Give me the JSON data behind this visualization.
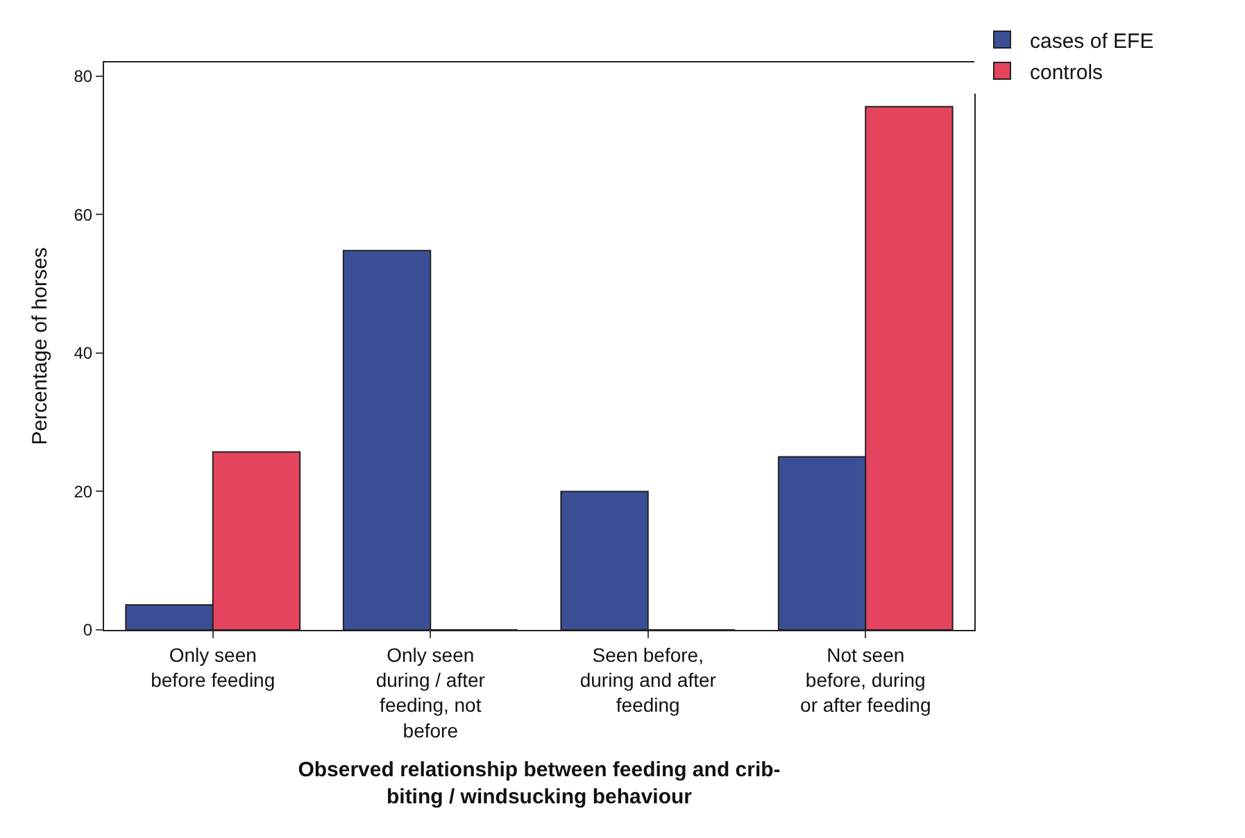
{
  "chart_data": {
    "type": "bar",
    "xlabel": "Observed relationship between feeding and crib-\nbiting / windsucking behaviour",
    "ylabel": "Percentage of horses",
    "categories": [
      "Only seen\nbefore feeding",
      "Only seen\nduring / after\nfeeding, not\nbefore",
      "Seen before,\nduring and after\nfeeding",
      "Not seen\nbefore, during\nor after feeding"
    ],
    "series": [
      {
        "name": "cases of EFE",
        "color": "#3b4f97",
        "values": [
          3.6,
          54.8,
          20.0,
          25.0
        ]
      },
      {
        "name": "controls",
        "color": "#e5445f",
        "values": [
          25.7,
          0,
          0,
          75.6
        ]
      }
    ],
    "ylim": [
      0,
      82
    ],
    "yticks": [
      0,
      20,
      40,
      60,
      80
    ],
    "legend": "top right"
  }
}
